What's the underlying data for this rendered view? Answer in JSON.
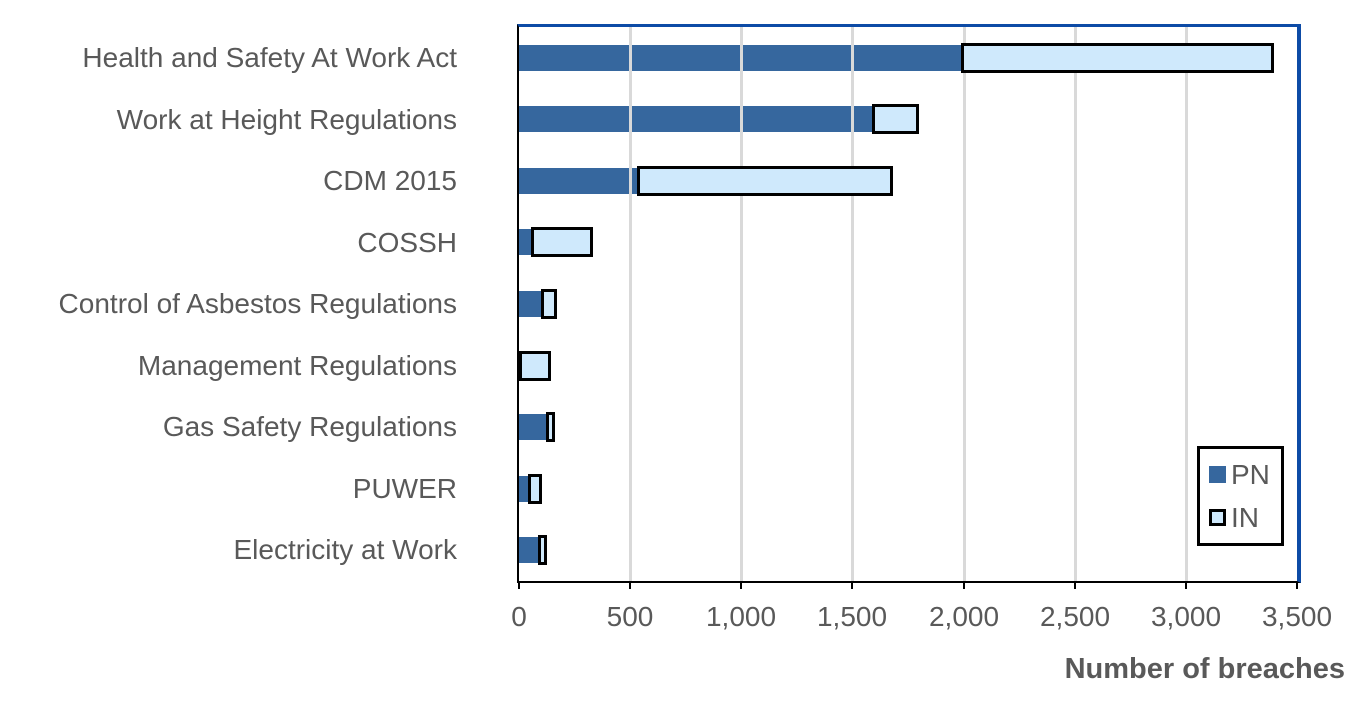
{
  "chart_data": {
    "type": "bar",
    "orientation": "horizontal",
    "stacked": true,
    "title": "",
    "xlabel": "Number of breaches",
    "xlim": [
      0,
      3500
    ],
    "xticks": [
      0,
      500,
      1000,
      1500,
      2000,
      2500,
      3000,
      3500
    ],
    "xtick_labels": [
      "0",
      "500",
      "1,000",
      "1,500",
      "2,000",
      "2,500",
      "3,000",
      "3,500"
    ],
    "grid": "vertical",
    "legend_position": "inside-right",
    "categories": [
      "Health and Safety At Work Act",
      "Work at Height Regulations",
      "CDM 2015",
      "COSSH",
      "Control of Asbestos Regulations",
      "Management Regulations",
      "Gas Safety Regulations",
      "PUWER",
      "Electricity at Work"
    ],
    "series": [
      {
        "name": "PN",
        "color": "#36679e",
        "values": [
          1990,
          1590,
          530,
          55,
          100,
          0,
          120,
          40,
          85
        ]
      },
      {
        "name": "IN",
        "color": "#cfe9fc",
        "values": [
          1410,
          210,
          1150,
          280,
          70,
          145,
          10,
          65,
          25
        ]
      }
    ]
  },
  "colors": {
    "pn_fill": "#36679e",
    "in_fill": "#cfe9fc",
    "in_border": "#000000",
    "frame_blue": "#0d4ba6",
    "axis_black": "#000000",
    "gridline": "#d9d9d9",
    "text": "#595959",
    "background": "#ffffff"
  },
  "legend": {
    "items": [
      {
        "label": "PN",
        "swatch": "pn-filled-square"
      },
      {
        "label": "IN",
        "swatch": "in-bordered-square"
      }
    ]
  }
}
